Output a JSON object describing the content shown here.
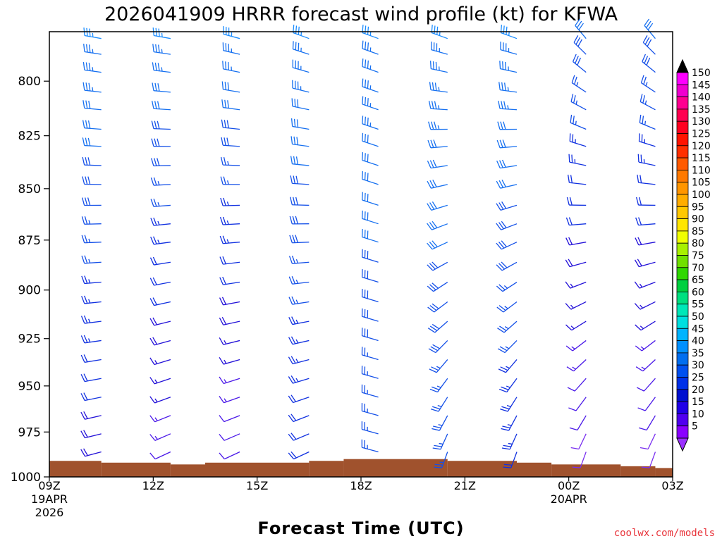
{
  "chart_data": {
    "type": "wind_barb_profile",
    "title": "2026041909 HRRR forecast wind profile (kt) for KFWA",
    "xlabel": "Forecast Time (UTC)",
    "credit": "coolwx.com/models",
    "ylim": [
      1000,
      778
    ],
    "y_ticks": [
      "800",
      "825",
      "850",
      "875",
      "900",
      "925",
      "950",
      "975",
      "1000"
    ],
    "x_hours_range": [
      0,
      18
    ],
    "x_ticks": [
      {
        "hour": 0,
        "label": "09Z",
        "sub1": "19APR",
        "sub2": "2026"
      },
      {
        "hour": 3,
        "label": "12Z",
        "sub1": "",
        "sub2": ""
      },
      {
        "hour": 6,
        "label": "15Z",
        "sub1": "",
        "sub2": ""
      },
      {
        "hour": 9,
        "label": "18Z",
        "sub1": "",
        "sub2": ""
      },
      {
        "hour": 12,
        "label": "21Z",
        "sub1": "",
        "sub2": ""
      },
      {
        "hour": 15,
        "label": "00Z",
        "sub1": "20APR",
        "sub2": ""
      },
      {
        "hour": 18,
        "label": "03Z",
        "sub1": "",
        "sub2": ""
      }
    ],
    "colorbar": {
      "labels": [
        "150",
        "145",
        "140",
        "135",
        "130",
        "125",
        "120",
        "115",
        "110",
        "105",
        "100",
        "95",
        "90",
        "85",
        "80",
        "75",
        "70",
        "65",
        "60",
        "55",
        "50",
        "45",
        "40",
        "35",
        "30",
        "25",
        "20",
        "15",
        "10",
        "5"
      ],
      "colors": [
        "#ff00ff",
        "#f000d0",
        "#ff0090",
        "#ff0050",
        "#ff0020",
        "#ff1400",
        "#ff3000",
        "#ff5a00",
        "#ff7a00",
        "#ff9600",
        "#ffad00",
        "#ffc800",
        "#ffe600",
        "#f0ff00",
        "#a8f000",
        "#70e000",
        "#30d800",
        "#00d040",
        "#00e080",
        "#00e8b8",
        "#00e0e0",
        "#00b4ff",
        "#0090ff",
        "#006ef0",
        "#0050f0",
        "#0030e8",
        "#0010d0",
        "#2000e8",
        "#5000f0",
        "#8a00ff"
      ],
      "top_arrow_color": "#000000",
      "bottom_arrow_color": "#9a30ff"
    },
    "terrain": {
      "color": "#a0522d",
      "segments": [
        {
          "h0": 0,
          "h1": 1.5,
          "pressure": 991
        },
        {
          "h0": 1.5,
          "h1": 3.5,
          "pressure": 992
        },
        {
          "h0": 3.5,
          "h1": 4.5,
          "pressure": 993
        },
        {
          "h0": 4.5,
          "h1": 7.5,
          "pressure": 992
        },
        {
          "h0": 7.5,
          "h1": 8.5,
          "pressure": 991
        },
        {
          "h0": 8.5,
          "h1": 11.5,
          "pressure": 990
        },
        {
          "h0": 11.5,
          "h1": 13.5,
          "pressure": 991
        },
        {
          "h0": 13.5,
          "h1": 14.5,
          "pressure": 992
        },
        {
          "h0": 14.5,
          "h1": 16.5,
          "pressure": 993
        },
        {
          "h0": 16.5,
          "h1": 17.5,
          "pressure": 994
        },
        {
          "h0": 17.5,
          "h1": 18,
          "pressure": 995
        }
      ]
    },
    "barb_columns": [
      {
        "hour": 1.5,
        "top_speed": 35,
        "bottom_speed": 18,
        "start_dir": 280,
        "end_dir": 255
      },
      {
        "hour": 3.5,
        "top_speed": 35,
        "bottom_speed": 12,
        "start_dir": 280,
        "end_dir": 245
      },
      {
        "hour": 5.5,
        "top_speed": 35,
        "bottom_speed": 10,
        "start_dir": 285,
        "end_dir": 245
      },
      {
        "hour": 7.5,
        "top_speed": 35,
        "bottom_speed": 20,
        "start_dir": 290,
        "end_dir": 245
      },
      {
        "hour": 9.5,
        "top_speed": 35,
        "bottom_speed": 25,
        "start_dir": 290,
        "end_dir": 285
      },
      {
        "hour": 11.5,
        "top_speed": 35,
        "bottom_speed": 25,
        "start_dir": 290,
        "end_dir": 200
      },
      {
        "hour": 13.5,
        "top_speed": 35,
        "bottom_speed": 22,
        "start_dir": 290,
        "end_dir": 200
      },
      {
        "hour": 15.5,
        "top_speed": 30,
        "bottom_speed": 8,
        "start_dir": 320,
        "end_dir": 200
      },
      {
        "hour": 17.5,
        "top_speed": 30,
        "bottom_speed": 8,
        "start_dir": 320,
        "end_dir": 200
      }
    ],
    "levels_hpa": [
      781,
      788,
      796,
      805,
      813,
      822,
      830,
      839,
      848,
      858,
      867,
      876,
      886,
      896,
      906,
      916,
      926,
      936,
      946,
      956,
      966,
      976,
      986
    ]
  }
}
